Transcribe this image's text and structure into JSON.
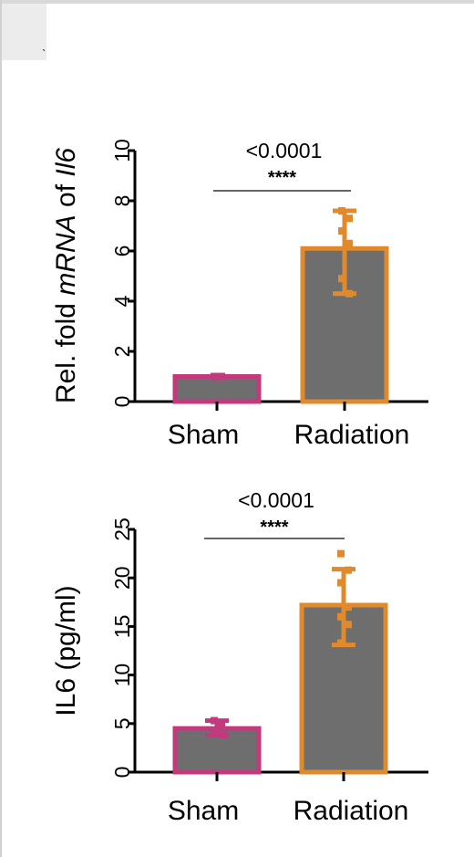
{
  "page": {
    "corner_mark": "ˎ"
  },
  "chart_data": [
    {
      "type": "bar",
      "title": "",
      "ylabel_prefix": "Rel. fold ",
      "ylabel_italic": "mRNA",
      "ylabel_mid": " of ",
      "ylabel_gene": "Il6",
      "ylim": [
        0,
        10
      ],
      "yticks": [
        0,
        2,
        4,
        6,
        8,
        10
      ],
      "categories": [
        "Sham",
        "Radiation"
      ],
      "values": [
        1.0,
        6.1
      ],
      "error_upper": [
        1.0,
        7.6
      ],
      "error_lower": [
        1.0,
        4.3
      ],
      "points": [
        [
          1.0,
          1.0,
          1.0
        ],
        [
          7.6,
          7.3,
          6.8,
          6.3,
          4.9,
          4.3
        ]
      ],
      "bar_fill": "#6e6e6e",
      "edge_colors": [
        "#c2397e",
        "#e08a2c"
      ],
      "significance": {
        "pvalue": "<0.0001",
        "stars": "****"
      }
    },
    {
      "type": "bar",
      "title": "",
      "ylabel": "IL6 (pg/ml)",
      "ylim": [
        0,
        25
      ],
      "yticks": [
        0,
        5,
        10,
        15,
        20,
        25
      ],
      "categories": [
        "Sham",
        "Radiation"
      ],
      "values": [
        4.5,
        17.2
      ],
      "error_upper": [
        5.3,
        20.9
      ],
      "error_lower": [
        3.8,
        13.1
      ],
      "points": [
        [
          5.3,
          4.8,
          4.2,
          3.8
        ],
        [
          22.5,
          20.8,
          19.5,
          17.0,
          16.0,
          15.2,
          13.3
        ]
      ],
      "bar_fill": "#6e6e6e",
      "edge_colors": [
        "#c2397e",
        "#e08a2c"
      ],
      "significance": {
        "pvalue": "<0.0001",
        "stars": "****"
      }
    }
  ]
}
